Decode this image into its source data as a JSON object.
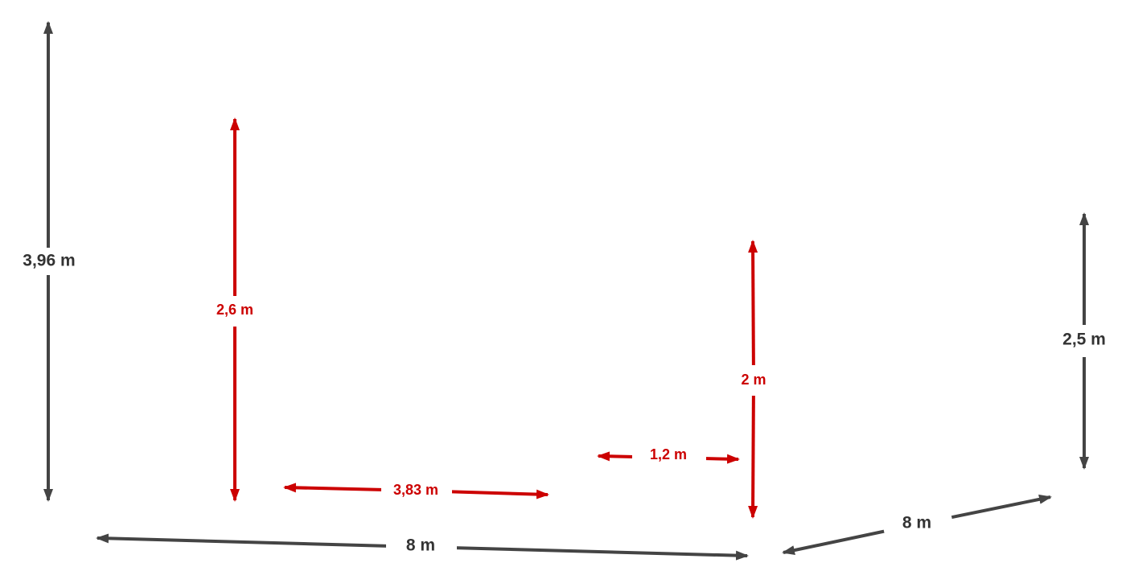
{
  "dimensions": [
    "3,96 m",
    "2,6 m",
    "3,83 m",
    "1,2 m",
    "2 m",
    "2,5 m",
    "8 m",
    "8 m"
  ]
}
